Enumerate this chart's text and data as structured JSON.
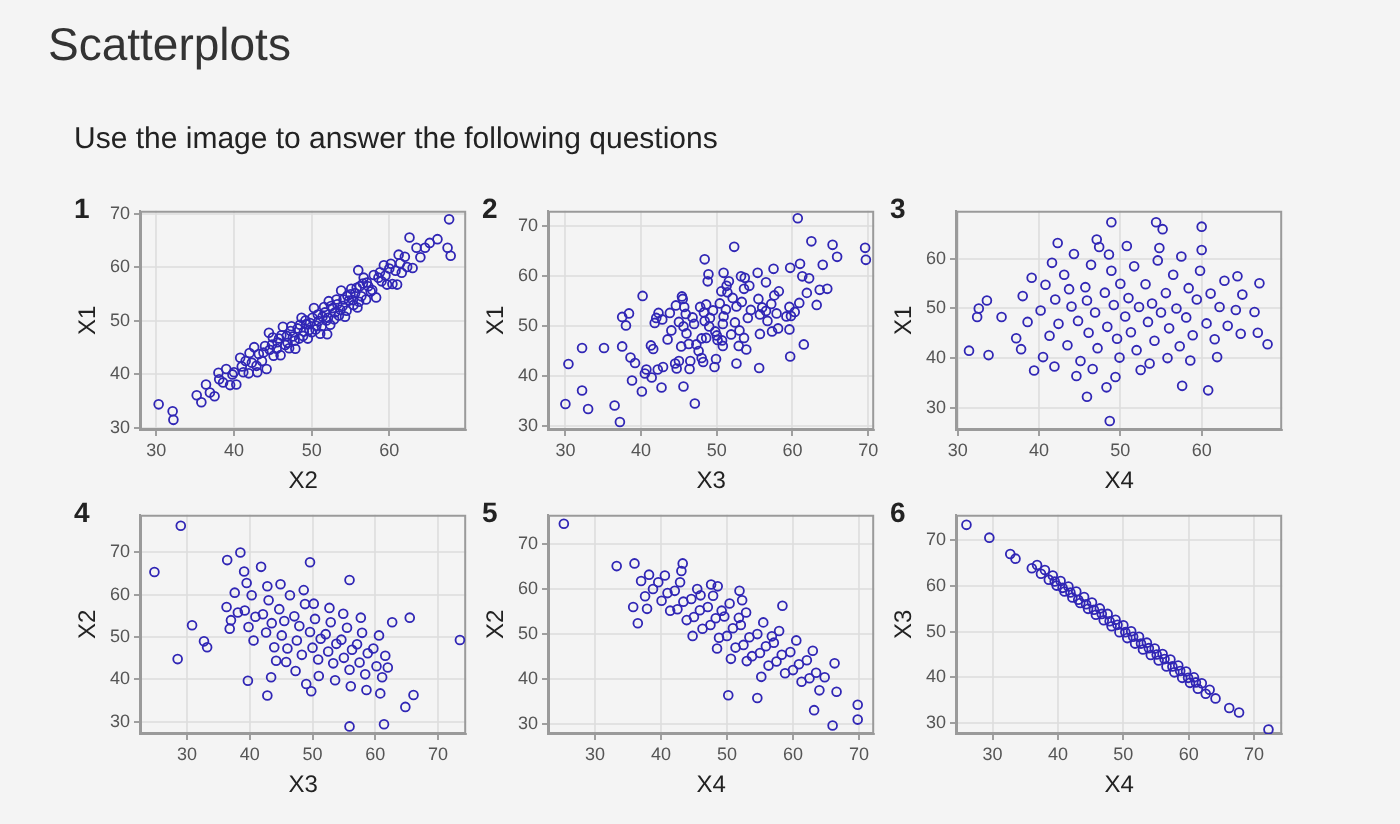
{
  "chart_data": [
    {
      "type": "other",
      "title": "Scatterplots",
      "subtitle": "Use the image to answer the following questions"
    },
    {
      "type": "scatter",
      "title": "1",
      "xlabel": "X2",
      "ylabel": "X1",
      "xlim": [
        27.9,
        69.9
      ],
      "ylim": [
        29.6,
        70.6
      ],
      "xticks": [
        30,
        40,
        50,
        60
      ],
      "yticks": [
        30,
        40,
        50,
        60,
        70
      ],
      "grid": true,
      "marker": "circle",
      "color": "#3026b5",
      "x": [
        30.3,
        32.1,
        32.2,
        35.2,
        35.8,
        36.4,
        36.9,
        37.5,
        38.1,
        38.6,
        39.0,
        39.5,
        40.0,
        40.3,
        40.8,
        41.2,
        41.5,
        41.9,
        42.3,
        42.6,
        43.0,
        43.2,
        43.6,
        44.0,
        44.2,
        44.6,
        45.0,
        45.1,
        45.5,
        45.8,
        46.0,
        46.3,
        46.6,
        46.8,
        47.1,
        47.4,
        47.6,
        47.9,
        48.2,
        48.4,
        48.7,
        49.0,
        49.2,
        49.5,
        49.8,
        50.0,
        50.3,
        50.6,
        50.8,
        51.1,
        51.4,
        51.6,
        51.9,
        52.2,
        52.4,
        52.7,
        53.0,
        53.2,
        53.5,
        53.8,
        54.0,
        54.3,
        54.6,
        54.8,
        55.1,
        55.4,
        55.6,
        55.9,
        56.2,
        56.4,
        56.7,
        57.0,
        57.3,
        57.6,
        58.0,
        58.3,
        58.6,
        59.0,
        59.3,
        59.7,
        60.0,
        60.4,
        60.8,
        61.2,
        61.6,
        62.0,
        62.3,
        62.6,
        63.0,
        63.5,
        64.0,
        64.6,
        65.2,
        66.2,
        67.5,
        67.9,
        67.7,
        44.5,
        52.0,
        61.0,
        38.0,
        56.0,
        43.8,
        44.9,
        45.6,
        46.1,
        46.9,
        47.3,
        47.8,
        48.5,
        48.9,
        49.3,
        49.7,
        50.1,
        50.5,
        50.9,
        51.3,
        51.7,
        52.1,
        52.5,
        52.9,
        53.3,
        53.7,
        54.1,
        54.5,
        55.0,
        55.3,
        55.8,
        56.1,
        56.6,
        57.1,
        57.8,
        58.8,
        59.5,
        60.2,
        61.4,
        42.0,
        42.9,
        41.0,
        39.8
      ],
      "values": [
        34.4,
        33.1,
        31.5,
        36.1,
        34.8,
        38.1,
        36.6,
        35.9,
        39.1,
        38.5,
        41.0,
        38.0,
        40.4,
        38.1,
        43.1,
        40.4,
        42.5,
        40.2,
        42.2,
        45.1,
        40.4,
        43.8,
        42.5,
        45.3,
        41.0,
        44.6,
        46.9,
        43.5,
        44.8,
        46.7,
        43.6,
        48.9,
        45.5,
        47.2,
        44.9,
        49.0,
        47.1,
        44.8,
        48.6,
        46.7,
        50.6,
        48.0,
        50.1,
        46.7,
        49.6,
        47.9,
        52.4,
        49.1,
        51.2,
        47.6,
        50.8,
        52.6,
        50.1,
        53.7,
        49.3,
        52.4,
        51.6,
        54.0,
        51.0,
        55.7,
        52.8,
        50.8,
        54.7,
        53.8,
        56.0,
        53.0,
        55.2,
        52.5,
        56.5,
        54.6,
        58.1,
        54.0,
        56.5,
        55.5,
        58.6,
        54.4,
        58.1,
        57.4,
        60.4,
        56.8,
        59.8,
        56.9,
        59.4,
        62.4,
        59.0,
        62.0,
        60.1,
        65.6,
        59.9,
        63.7,
        61.9,
        63.7,
        64.6,
        65.3,
        63.7,
        62.2,
        69.0,
        47.8,
        47.5,
        56.8,
        40.3,
        59.5,
        44.1,
        45.6,
        46.0,
        47.3,
        45.9,
        48.1,
        46.3,
        49.3,
        47.2,
        49.4,
        48.3,
        50.6,
        48.4,
        50.0,
        49.0,
        51.6,
        50.6,
        52.8,
        50.3,
        53.1,
        52.1,
        54.0,
        51.9,
        55.0,
        53.9,
        56.2,
        53.6,
        57.0,
        57.2,
        55.8,
        59.1,
        58.5,
        60.7,
        60.8,
        44.0,
        41.6,
        41.5,
        40.0
      ]
    },
    {
      "type": "scatter",
      "title": "2",
      "xlabel": "X3",
      "ylabel": "X1",
      "xlim": [
        27.7,
        70.8
      ],
      "ylim": [
        29.3,
        73.1
      ],
      "xticks": [
        30,
        40,
        50,
        60,
        70
      ],
      "yticks": [
        30,
        40,
        50,
        60,
        70
      ],
      "grid": true,
      "marker": "circle",
      "color": "#3026b5",
      "x": [
        30.0,
        30.4,
        32.2,
        33.0,
        32.2,
        37.2,
        36.5,
        35.1,
        60.7,
        62.5,
        65.3,
        69.6,
        69.7,
        65.9,
        52.3,
        48.4,
        47.1,
        59.7,
        61.5,
        55.6,
        37.5,
        40.2,
        38.4,
        38.6,
        37.5,
        38.8,
        39.2,
        40.7,
        38.0,
        40.1,
        41.6,
        40.5,
        41.8,
        41.4,
        42.0,
        41.3,
        42.9,
        42.8,
        42.2,
        43.8,
        43.5,
        45.0,
        42.3,
        44.5,
        44.6,
        42.7,
        46.3,
        45.3,
        45.7,
        44.7,
        45.4,
        45.6,
        45.6,
        48.0,
        45.9,
        48.0,
        45.5,
        46.4,
        48.4,
        47.3,
        48.6,
        48.2,
        48.8,
        46.5,
        49.0,
        50.0,
        47.8,
        50.8,
        48.9,
        49.7,
        49.1,
        50.7,
        50.6,
        50.1,
        51.6,
        49.9,
        52.4,
        50.8,
        51.3,
        52.9,
        50.9,
        52.6,
        52.6,
        54.1,
        51.4,
        53.6,
        53.7,
        53.3,
        55.7,
        53.6,
        55.7,
        53.2,
        55.5,
        56.5,
        54.3,
        57.3,
        55.4,
        57.6,
        56.0,
        56.5,
        58.1,
        57.2,
        59.6,
        57.5,
        59.6,
        58.2,
        59.8,
        59.7,
        59.2,
        61.9,
        60.9,
        61.3,
        60.3,
        62.2,
        63.2,
        61.0,
        64.6,
        63.6,
        64.0,
        47.0,
        48.3,
        49.5,
        50.4,
        51.2,
        52.1,
        46.0,
        47.6,
        49.8,
        51.9,
        53.0,
        48.6,
        50.9,
        46.8,
        54.5,
        44.0,
        45.0,
        53.9,
        56.7,
        57.9
      ],
      "values": [
        34.5,
        42.5,
        45.7,
        33.5,
        37.2,
        30.9,
        34.2,
        45.7,
        71.6,
        67.0,
        66.3,
        65.7,
        63.3,
        63.9,
        65.9,
        63.4,
        34.6,
        44.0,
        46.4,
        41.7,
        51.9,
        56.1,
        52.6,
        43.8,
        46.0,
        39.2,
        42.7,
        41.4,
        50.2,
        37.0,
        45.5,
        40.6,
        50.7,
        39.8,
        51.7,
        46.2,
        41.9,
        51.4,
        41.4,
        52.7,
        47.4,
        43.1,
        52.7,
        42.6,
        54.2,
        37.8,
        46.5,
        46.0,
        53.9,
        41.6,
        56.0,
        38.0,
        50.0,
        47.6,
        52.5,
        43.7,
        55.5,
        41.5,
        51.1,
        46.4,
        54.4,
        42.9,
        59.0,
        43.1,
        50.0,
        48.2,
        53.9,
        46.1,
        60.4,
        41.9,
        51.7,
        47.2,
        57.0,
        47.3,
        59.0,
        43.5,
        50.8,
        50.5,
        58.1,
        46.1,
        60.7,
        42.6,
        54.0,
        51.7,
        56.8,
        47.7,
        59.7,
        54.9,
        52.4,
        57.5,
        48.5,
        60.0,
        55.5,
        53.1,
        58.1,
        49.0,
        60.7,
        56.2,
        53.8,
        58.8,
        49.6,
        54.5,
        53.9,
        61.5,
        49.4,
        57.0,
        52.1,
        61.7,
        52.0,
        56.7,
        54.7,
        60.0,
        52.9,
        59.6,
        54.3,
        62.5,
        57.5,
        57.3,
        62.3,
        50.5,
        52.8,
        53.2,
        54.6,
        53.4,
        55.7,
        48.6,
        45.1,
        49.0,
        48.4,
        49.2,
        47.7,
        52.0,
        51.8,
        53.3,
        49.2,
        50.9,
        45.4,
        51.1,
        52.6
      ]
    },
    {
      "type": "scatter",
      "title": "3",
      "xlabel": "X4",
      "ylabel": "X1",
      "xlim": [
        29.8,
        69.9
      ],
      "ylim": [
        25.5,
        69.7
      ],
      "xticks": [
        30,
        40,
        50,
        60
      ],
      "yticks": [
        30,
        40,
        50,
        60
      ],
      "grid": true,
      "marker": "circle",
      "color": "#3026b5",
      "x": [
        31.4,
        33.8,
        32.6,
        32.4,
        33.6,
        35.4,
        48.7,
        45.9,
        48.3,
        60.8,
        57.6,
        68.1,
        66.9,
        67.1,
        66.5,
        64.4,
        48.9,
        54.4,
        60.0,
        55.2,
        42.3,
        47.1,
        37.2,
        38.0,
        38.6,
        39.1,
        37.8,
        39.4,
        40.2,
        40.8,
        41.3,
        41.6,
        40.5,
        42.0,
        41.9,
        42.4,
        43.1,
        43.5,
        44.0,
        44.3,
        44.8,
        43.7,
        45.1,
        44.6,
        45.7,
        46.1,
        46.4,
        46.9,
        47.2,
        45.9,
        47.4,
        46.6,
        48.1,
        48.4,
        48.9,
        49.2,
        49.6,
        48.6,
        49.9,
        49.4,
        50.0,
        50.6,
        51.0,
        51.3,
        51.7,
        52.0,
        52.3,
        50.8,
        52.5,
        53.1,
        53.4,
        53.9,
        54.2,
        54.6,
        55.0,
        53.6,
        54.8,
        55.6,
        56.0,
        56.5,
        56.9,
        57.3,
        55.8,
        57.5,
        58.1,
        58.4,
        58.9,
        59.4,
        59.8,
        58.6,
        60.0,
        60.6,
        61.1,
        61.6,
        62.2,
        62.8,
        61.9,
        63.2,
        64.2,
        64.8,
        65.0
      ],
      "values": [
        41.5,
        40.6,
        50.0,
        48.3,
        51.6,
        48.3,
        27.3,
        32.2,
        34.1,
        33.5,
        34.4,
        42.8,
        45.1,
        55.1,
        49.3,
        56.5,
        67.4,
        67.4,
        66.5,
        66.0,
        63.2,
        63.9,
        44.0,
        52.5,
        47.3,
        56.2,
        41.8,
        37.5,
        49.6,
        54.8,
        44.5,
        59.2,
        40.2,
        51.8,
        38.3,
        46.9,
        56.8,
        42.6,
        50.4,
        61.0,
        47.5,
        53.9,
        39.4,
        36.4,
        54.3,
        45.1,
        58.8,
        49.2,
        42.0,
        51.6,
        62.4,
        37.8,
        53.2,
        46.3,
        57.6,
        50.7,
        43.9,
        60.9,
        40.1,
        36.2,
        55.0,
        48.4,
        52.1,
        45.2,
        58.5,
        41.6,
        50.3,
        62.6,
        37.6,
        54.9,
        47.3,
        51.0,
        43.5,
        59.7,
        49.2,
        38.9,
        62.2,
        53.1,
        46.0,
        56.8,
        50.0,
        42.4,
        40.0,
        60.5,
        48.2,
        54.1,
        44.6,
        51.8,
        57.6,
        39.5,
        61.8,
        47.0,
        53.0,
        43.8,
        50.3,
        55.6,
        40.2,
        46.5,
        49.7,
        44.9,
        52.8
      ]
    },
    {
      "type": "scatter",
      "title": "4",
      "xlabel": "X3",
      "ylabel": "X2",
      "xlim": [
        22.5,
        74.5
      ],
      "ylim": [
        27.1,
        78.9
      ],
      "xticks": [
        30,
        40,
        50,
        60,
        70
      ],
      "yticks": [
        30,
        40,
        50,
        60,
        70
      ],
      "grid": true,
      "marker": "circle",
      "color": "#3026b5",
      "x": [
        29.0,
        24.8,
        30.8,
        28.5,
        32.7,
        33.2,
        38.5,
        36.4,
        73.5,
        64.8,
        66.1,
        61.4,
        55.9,
        62.7,
        65.5,
        42.8,
        39.7,
        43.4,
        55.9,
        49.6,
        41.8,
        39.1,
        36.3,
        37.0,
        37.6,
        38.1,
        36.8,
        39.2,
        39.8,
        40.3,
        40.9,
        40.6,
        39.5,
        42.1,
        42.6,
        43.0,
        43.5,
        43.9,
        42.8,
        44.2,
        44.7,
        45.1,
        45.5,
        46.0,
        46.4,
        45.8,
        44.9,
        47.1,
        47.5,
        47.9,
        48.3,
        48.8,
        47.3,
        48.6,
        49.0,
        49.6,
        50.0,
        50.4,
        50.9,
        51.3,
        50.2,
        51.0,
        49.8,
        52.1,
        52.5,
        52.9,
        53.3,
        53.8,
        52.7,
        53.6,
        54.6,
        55.0,
        55.5,
        55.9,
        56.3,
        54.9,
        56.1,
        57.1,
        57.5,
        57.9,
        58.4,
        58.8,
        57.7,
        58.6,
        59.7,
        60.2,
        60.6,
        61.1,
        61.6,
        60.8,
        62.0
      ],
      "values": [
        76.3,
        65.4,
        52.8,
        44.8,
        49.0,
        47.6,
        70.0,
        68.2,
        49.3,
        33.5,
        36.3,
        29.4,
        28.9,
        53.5,
        54.6,
        36.2,
        39.7,
        40.5,
        63.5,
        67.7,
        66.6,
        65.5,
        57.1,
        54.0,
        60.5,
        55.8,
        52.0,
        56.3,
        52.4,
        59.9,
        54.8,
        49.2,
        62.8,
        55.4,
        51.1,
        58.7,
        53.3,
        47.6,
        62.0,
        44.4,
        56.6,
        50.4,
        53.8,
        47.3,
        59.9,
        44.1,
        62.5,
        54.9,
        49.2,
        52.6,
        45.8,
        57.8,
        42.0,
        61.1,
        38.9,
        51.2,
        47.5,
        54.3,
        44.7,
        49.6,
        57.9,
        40.8,
        37.2,
        50.7,
        46.6,
        53.5,
        43.8,
        48.4,
        56.9,
        39.8,
        49.4,
        45.1,
        52.2,
        42.3,
        47.0,
        55.5,
        38.4,
        48.3,
        44.0,
        51.0,
        41.2,
        46.2,
        54.6,
        37.5,
        47.3,
        43.1,
        50.4,
        40.5,
        45.6,
        36.7,
        42.8
      ]
    },
    {
      "type": "scatter",
      "title": "5",
      "xlabel": "X4",
      "ylabel": "X2",
      "xlim": [
        22.9,
        72.3
      ],
      "ylim": [
        27.8,
        76.5
      ],
      "xticks": [
        30,
        40,
        50,
        60,
        70
      ],
      "yticks": [
        30,
        40,
        50,
        60,
        70
      ],
      "grid": true,
      "marker": "circle",
      "color": "#3026b5",
      "x": [
        25.3,
        33.3,
        36.0,
        43.3,
        69.8,
        69.8,
        66.0,
        58.4,
        50.2,
        54.6,
        36.5,
        35.8,
        66.3,
        64.8,
        66.6,
        63.2,
        48.6,
        51.9,
        37.0,
        37.6,
        38.2,
        38.8,
        37.9,
        39.6,
        40.1,
        40.6,
        41.0,
        41.4,
        42.1,
        42.5,
        42.9,
        43.4,
        43.9,
        43.1,
        44.6,
        45.0,
        45.5,
        45.9,
        46.3,
        44.8,
        47.1,
        47.5,
        47.9,
        48.3,
        48.8,
        47.6,
        49.6,
        50.0,
        50.4,
        50.9,
        51.3,
        50.6,
        52.1,
        52.5,
        52.9,
        53.4,
        53.8,
        52.3,
        54.6,
        55.0,
        55.5,
        55.9,
        56.3,
        55.2,
        57.1,
        57.5,
        57.9,
        58.3,
        58.8,
        59.6,
        60.0,
        60.5,
        60.9,
        61.3,
        62.1,
        62.5,
        63.0,
        63.5,
        64.0,
        46.0,
        49.2,
        51.8,
        53.0,
        48.5,
        56.8
      ],
      "values": [
        74.5,
        65.1,
        65.7,
        65.7,
        34.3,
        31.0,
        29.7,
        56.3,
        36.4,
        35.8,
        52.4,
        56.0,
        43.5,
        40.4,
        37.2,
        33.1,
        60.6,
        59.6,
        61.8,
        58.4,
        63.2,
        60.0,
        55.6,
        61.5,
        57.4,
        63.0,
        59.1,
        55.2,
        59.6,
        55.5,
        61.5,
        57.2,
        53.1,
        64.0,
        57.8,
        53.8,
        60.0,
        55.3,
        51.2,
        49.6,
        56.0,
        52.0,
        58.5,
        53.5,
        49.2,
        61.0,
        53.9,
        49.6,
        56.8,
        51.3,
        47.0,
        44.5,
        52.0,
        47.6,
        54.8,
        49.3,
        45.1,
        57.5,
        50.0,
        45.8,
        52.6,
        47.3,
        43.0,
        40.5,
        48.1,
        43.9,
        50.7,
        45.4,
        41.3,
        46.0,
        42.0,
        48.6,
        43.3,
        39.4,
        44.2,
        40.2,
        46.3,
        41.4,
        37.5,
        58.6,
        55.2,
        53.6,
        44.0,
        46.8,
        49.5
      ]
    },
    {
      "type": "scatter",
      "title": "6",
      "xlabel": "X4",
      "ylabel": "X3",
      "xlim": [
        24.4,
        74.3
      ],
      "ylim": [
        27.6,
        75.6
      ],
      "xticks": [
        30,
        40,
        50,
        60,
        70
      ],
      "yticks": [
        30,
        40,
        50,
        60,
        70
      ],
      "grid": true,
      "marker": "circle",
      "color": "#3026b5",
      "x": [
        26.0,
        29.5,
        32.7,
        33.5,
        36.0,
        72.2,
        67.7,
        66.2,
        64.1,
        36.8,
        37.4,
        38.0,
        38.6,
        39.2,
        39.8,
        40.4,
        41.0,
        41.6,
        42.2,
        42.8,
        43.4,
        44.0,
        44.6,
        45.2,
        45.8,
        46.4,
        47.0,
        47.6,
        48.2,
        48.8,
        49.4,
        50.0,
        50.6,
        51.2,
        51.8,
        52.4,
        53.0,
        53.6,
        54.2,
        54.8,
        55.4,
        56.0,
        56.6,
        57.2,
        57.8,
        58.4,
        59.0,
        59.6,
        60.2,
        60.8,
        61.4,
        62.0,
        62.6,
        63.2,
        39.5,
        40.7,
        41.9,
        43.1,
        44.3,
        45.5,
        46.7,
        47.9,
        49.1,
        50.3,
        51.5,
        52.7,
        53.9,
        55.1,
        56.3,
        57.5,
        58.7,
        59.9,
        61.1
      ],
      "values": [
        73.4,
        70.6,
        67.0,
        66.0,
        63.9,
        28.6,
        32.3,
        33.3,
        35.4,
        64.6,
        62.7,
        63.5,
        61.4,
        62.3,
        60.1,
        61.1,
        58.8,
        59.9,
        57.5,
        58.8,
        56.3,
        57.6,
        55.0,
        56.4,
        53.7,
        55.1,
        52.5,
        53.9,
        51.2,
        52.6,
        49.9,
        51.4,
        48.6,
        50.1,
        47.4,
        48.9,
        46.1,
        47.6,
        44.9,
        46.3,
        43.7,
        45.1,
        42.4,
        43.9,
        41.1,
        42.6,
        39.9,
        41.3,
        38.8,
        40.0,
        37.5,
        38.7,
        36.4,
        37.3,
        61.0,
        59.6,
        58.6,
        57.0,
        56.0,
        54.8,
        53.9,
        52.3,
        51.5,
        49.9,
        48.9,
        47.4,
        46.4,
        45.0,
        44.0,
        42.4,
        41.4,
        39.9,
        38.9
      ]
    }
  ]
}
